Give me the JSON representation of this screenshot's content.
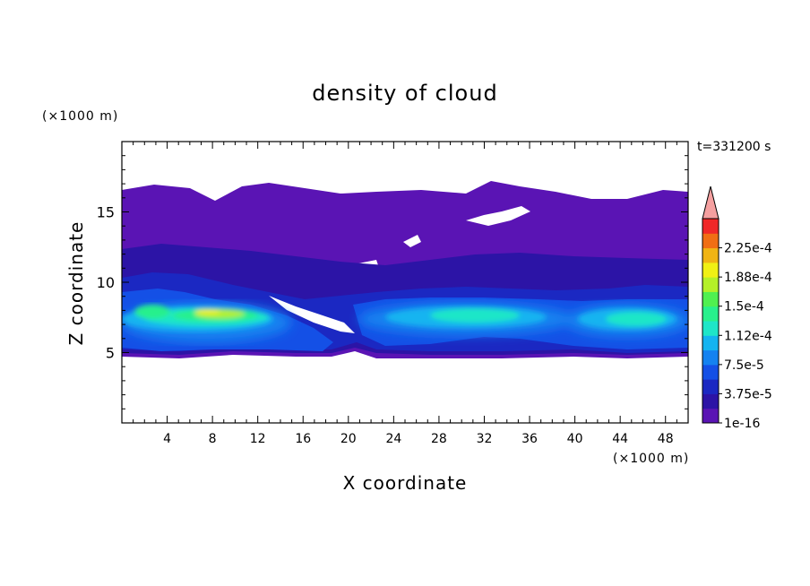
{
  "chart_data": {
    "type": "heatmap",
    "title": "density of cloud",
    "xlabel": "X coordinate",
    "ylabel": "Z coordinate",
    "x_unit": "(×1000 m)",
    "y_unit": "(×1000 m)",
    "time_label": "t=331200 s",
    "xlim": [
      0,
      50
    ],
    "ylim": [
      0,
      20
    ],
    "x_ticks": [
      4,
      8,
      12,
      16,
      20,
      24,
      28,
      32,
      36,
      40,
      44,
      48
    ],
    "y_ticks": [
      5,
      10,
      15
    ],
    "colorbar": {
      "levels": [
        1e-16,
        1.875e-05,
        3.75e-05,
        5.625e-05,
        7.5e-05,
        9.375e-05,
        0.0001125,
        0.00013125,
        0.00015,
        0.00016875,
        0.0001875,
        0.00020625,
        0.000225,
        0.00024375
      ],
      "labels": [
        "1e-16",
        "3.75e-5",
        "7.5e-5",
        "1.12e-4",
        "1.5e-4",
        "1.88e-4",
        "2.25e-4"
      ],
      "colors": [
        "#5a14b4",
        "#2c14a6",
        "#1b28c2",
        "#1450e6",
        "#1482f0",
        "#14b4f0",
        "#1ee6c8",
        "#28f08c",
        "#50f050",
        "#b4f028",
        "#f0f014",
        "#f0b414",
        "#f06e14",
        "#f02828"
      ],
      "overflow_color": "#f5a0a0"
    },
    "cloud_region": {
      "x_range": [
        0,
        50
      ],
      "z_base_km": 5,
      "z_top_km": 16.5,
      "core_z_range_km": [
        6,
        9
      ],
      "max_density_near": {
        "x_km": 8,
        "z_km": 7.8,
        "value": 0.0002
      },
      "clear_gap_near": {
        "x_km": 20,
        "z_km": 7.5
      }
    }
  }
}
